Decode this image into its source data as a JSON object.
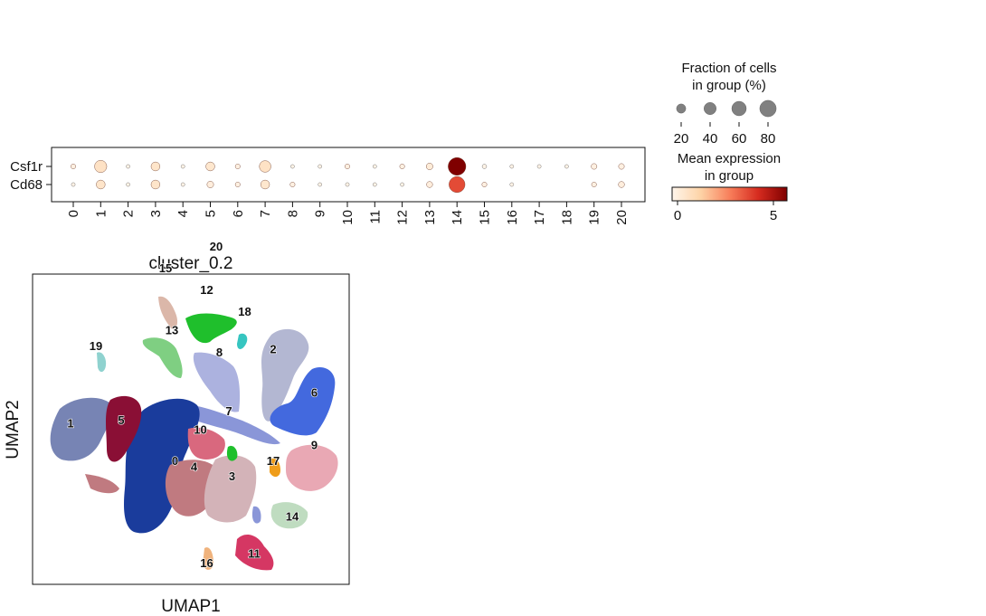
{
  "chart_data": [
    {
      "type": "dotplot",
      "genes": [
        "Csf1r",
        "Cd68"
      ],
      "groups": [
        "0",
        "1",
        "2",
        "3",
        "4",
        "5",
        "6",
        "7",
        "8",
        "9",
        "10",
        "11",
        "12",
        "13",
        "14",
        "15",
        "16",
        "17",
        "18",
        "19",
        "20"
      ],
      "fraction_pct": {
        "Csf1r": [
          3,
          40,
          1,
          18,
          1,
          18,
          3,
          35,
          1,
          1,
          3,
          1,
          3,
          8,
          95,
          2,
          1,
          1,
          1,
          5,
          5
        ],
        "Cd68": [
          1,
          18,
          1,
          18,
          1,
          8,
          3,
          18,
          3,
          1,
          1,
          1,
          1,
          6,
          75,
          3,
          1,
          0,
          0,
          3,
          6
        ]
      },
      "mean_expr": {
        "Csf1r": [
          0.2,
          0.8,
          0.1,
          0.7,
          0.1,
          0.6,
          0.2,
          0.8,
          0.1,
          0.1,
          0.2,
          0.1,
          0.2,
          0.4,
          5.8,
          0.1,
          0.1,
          0.1,
          0.1,
          0.2,
          0.2
        ],
        "Cd68": [
          0.1,
          0.7,
          0.1,
          0.7,
          0.1,
          0.3,
          0.2,
          0.6,
          0.2,
          0.1,
          0.1,
          0.1,
          0.1,
          0.3,
          3.8,
          0.2,
          0.1,
          0.0,
          0.0,
          0.2,
          0.3
        ]
      },
      "size_legend": {
        "title_line1": "Fraction of cells",
        "title_line2": "in group (%)",
        "ticks": [
          "20",
          "40",
          "60",
          "80"
        ],
        "values": [
          20,
          40,
          60,
          80
        ]
      },
      "color_legend": {
        "title_line1": "Mean expression",
        "title_line2": "in group",
        "tick_min": "0",
        "tick_max": "5",
        "range": [
          0,
          5.8
        ],
        "colormap": "Reds"
      }
    },
    {
      "type": "scatter",
      "title": "cluster_0.2",
      "xlabel": "UMAP1",
      "ylabel": "UMAP2",
      "clusters": [
        {
          "label": "0",
          "color": "#1a3c9c",
          "x": 0.45,
          "y": 0.4
        },
        {
          "label": "1",
          "color": "#7784b4",
          "x": 0.12,
          "y": 0.52
        },
        {
          "label": "2",
          "color": "#b3b7d2",
          "x": 0.76,
          "y": 0.76
        },
        {
          "label": "3",
          "color": "#d3b3b8",
          "x": 0.63,
          "y": 0.35
        },
        {
          "label": "4",
          "color": "#c07a80",
          "x": 0.51,
          "y": 0.38
        },
        {
          "label": "5",
          "color": "#8a0f35",
          "x": 0.28,
          "y": 0.53
        },
        {
          "label": "6",
          "color": "#4369de",
          "x": 0.89,
          "y": 0.62
        },
        {
          "label": "7",
          "color": "#8a96d8",
          "x": 0.62,
          "y": 0.56
        },
        {
          "label": "8",
          "color": "#acb2df",
          "x": 0.59,
          "y": 0.75
        },
        {
          "label": "9",
          "color": "#e9a8b4",
          "x": 0.89,
          "y": 0.45
        },
        {
          "label": "10",
          "color": "#d9687e",
          "x": 0.53,
          "y": 0.5
        },
        {
          "label": "11",
          "color": "#d53763",
          "x": 0.7,
          "y": 0.1
        },
        {
          "label": "12",
          "color": "#1fbf2c",
          "x": 0.55,
          "y": 0.95
        },
        {
          "label": "13",
          "color": "#7fcf82",
          "x": 0.44,
          "y": 0.82
        },
        {
          "label": "14",
          "color": "#bfdcc0",
          "x": 0.82,
          "y": 0.22
        },
        {
          "label": "15",
          "color": "#dbb7a9",
          "x": 0.42,
          "y": 1.02
        },
        {
          "label": "16",
          "color": "#f0b37d",
          "x": 0.55,
          "y": 0.07
        },
        {
          "label": "17",
          "color": "#ef9d1a",
          "x": 0.76,
          "y": 0.4
        },
        {
          "label": "18",
          "color": "#36c5c0",
          "x": 0.67,
          "y": 0.88
        },
        {
          "label": "19",
          "color": "#8fd2cf",
          "x": 0.2,
          "y": 0.77
        },
        {
          "label": "20",
          "color": "#2b9e3b",
          "x": 0.58,
          "y": 1.09
        }
      ]
    }
  ]
}
